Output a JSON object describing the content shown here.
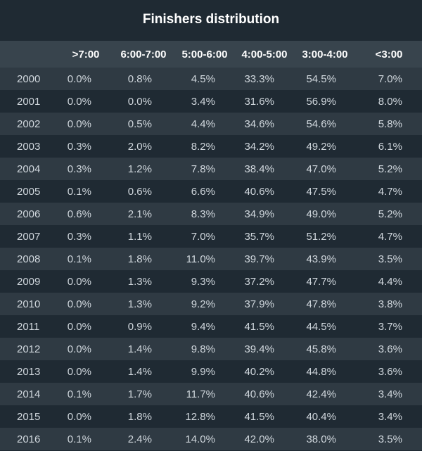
{
  "chart_data": {
    "type": "table",
    "title": "Finishers distribution",
    "columns": [
      ">7:00",
      "6:00-7:00",
      "5:00-6:00",
      "4:00-5:00",
      "3:00-4:00",
      "<3:00"
    ],
    "rows": [
      {
        "year": "2000",
        "values": [
          "0.0%",
          "0.8%",
          "4.5%",
          "33.3%",
          "54.5%",
          "7.0%"
        ]
      },
      {
        "year": "2001",
        "values": [
          "0.0%",
          "0.0%",
          "3.4%",
          "31.6%",
          "56.9%",
          "8.0%"
        ]
      },
      {
        "year": "2002",
        "values": [
          "0.0%",
          "0.5%",
          "4.4%",
          "34.6%",
          "54.6%",
          "5.8%"
        ]
      },
      {
        "year": "2003",
        "values": [
          "0.3%",
          "2.0%",
          "8.2%",
          "34.2%",
          "49.2%",
          "6.1%"
        ]
      },
      {
        "year": "2004",
        "values": [
          "0.3%",
          "1.2%",
          "7.8%",
          "38.4%",
          "47.0%",
          "5.2%"
        ]
      },
      {
        "year": "2005",
        "values": [
          "0.1%",
          "0.6%",
          "6.6%",
          "40.6%",
          "47.5%",
          "4.7%"
        ]
      },
      {
        "year": "2006",
        "values": [
          "0.6%",
          "2.1%",
          "8.3%",
          "34.9%",
          "49.0%",
          "5.2%"
        ]
      },
      {
        "year": "2007",
        "values": [
          "0.3%",
          "1.1%",
          "7.0%",
          "35.7%",
          "51.2%",
          "4.7%"
        ]
      },
      {
        "year": "2008",
        "values": [
          "0.1%",
          "1.8%",
          "11.0%",
          "39.7%",
          "43.9%",
          "3.5%"
        ]
      },
      {
        "year": "2009",
        "values": [
          "0.0%",
          "1.3%",
          "9.3%",
          "37.2%",
          "47.7%",
          "4.4%"
        ]
      },
      {
        "year": "2010",
        "values": [
          "0.0%",
          "1.3%",
          "9.2%",
          "37.9%",
          "47.8%",
          "3.8%"
        ]
      },
      {
        "year": "2011",
        "values": [
          "0.0%",
          "0.9%",
          "9.4%",
          "41.5%",
          "44.5%",
          "3.7%"
        ]
      },
      {
        "year": "2012",
        "values": [
          "0.0%",
          "1.4%",
          "9.8%",
          "39.4%",
          "45.8%",
          "3.6%"
        ]
      },
      {
        "year": "2013",
        "values": [
          "0.0%",
          "1.4%",
          "9.9%",
          "40.2%",
          "44.8%",
          "3.6%"
        ]
      },
      {
        "year": "2014",
        "values": [
          "0.1%",
          "1.7%",
          "11.7%",
          "40.6%",
          "42.4%",
          "3.4%"
        ]
      },
      {
        "year": "2015",
        "values": [
          "0.0%",
          "1.8%",
          "12.8%",
          "41.5%",
          "40.4%",
          "3.4%"
        ]
      },
      {
        "year": "2016",
        "values": [
          "0.1%",
          "2.4%",
          "14.0%",
          "42.0%",
          "38.0%",
          "3.5%"
        ]
      }
    ]
  },
  "colors": {
    "background": "#1f2a33",
    "header_row": "#38444d",
    "stripe_row": "#2f3a43",
    "title_text": "#ffffff",
    "cell_text": "#d0d7dd"
  }
}
